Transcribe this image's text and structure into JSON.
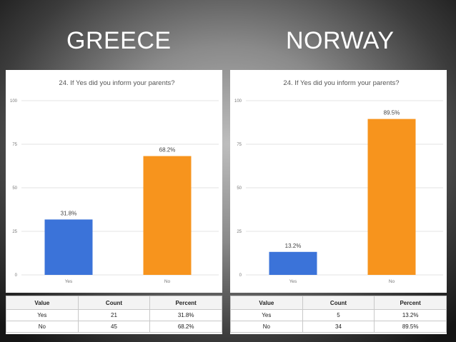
{
  "headings": {
    "left": "GREECE",
    "right": "NORWAY"
  },
  "chart_data": [
    {
      "type": "bar",
      "title": "24. If Yes did you inform your parents?",
      "categories": [
        "Yes",
        "No"
      ],
      "values": [
        31.8,
        68.2
      ],
      "data_labels": [
        "31.8%",
        "68.2%"
      ],
      "ylim": [
        0,
        100
      ],
      "yticks": [
        "0",
        "25",
        "50",
        "75",
        "100"
      ],
      "colors": [
        "#3b73d9",
        "#f7941d"
      ],
      "grid": true
    },
    {
      "type": "bar",
      "title": "24. If Yes did you inform your parents?",
      "categories": [
        "Yes",
        "No"
      ],
      "values": [
        13.2,
        89.5
      ],
      "data_labels": [
        "13.2%",
        "89.5%"
      ],
      "ylim": [
        0,
        100
      ],
      "yticks": [
        "0",
        "25",
        "50",
        "75",
        "100"
      ],
      "colors": [
        "#3b73d9",
        "#f7941d"
      ],
      "grid": true
    }
  ],
  "tables": [
    {
      "headers": [
        "Value",
        "Count",
        "Percent"
      ],
      "rows": [
        [
          "Yes",
          "21",
          "31.8%"
        ],
        [
          "No",
          "45",
          "68.2%"
        ]
      ]
    },
    {
      "headers": [
        "Value",
        "Count",
        "Percent"
      ],
      "rows": [
        [
          "Yes",
          "5",
          "13.2%"
        ],
        [
          "No",
          "34",
          "89.5%"
        ]
      ]
    }
  ]
}
